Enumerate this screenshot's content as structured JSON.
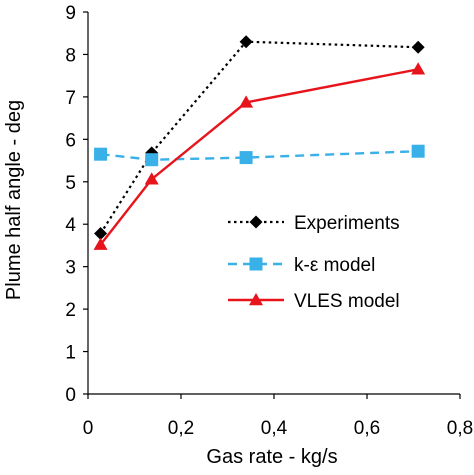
{
  "chart_data": {
    "type": "line",
    "xlabel": "Gas rate - kg/s",
    "ylabel": "Plume half angle - deg",
    "xlim": [
      0,
      0.8
    ],
    "ylim": [
      0,
      9
    ],
    "x_ticks": [
      "0",
      "0,2",
      "0,4",
      "0,6",
      "0,8"
    ],
    "y_ticks": [
      "0",
      "1",
      "2",
      "3",
      "4",
      "5",
      "6",
      "7",
      "8",
      "9"
    ],
    "grid": false,
    "legend_position": "center-right",
    "series": [
      {
        "name": "Experiments",
        "color": "#000000",
        "line_style": "dotted",
        "marker": "diamond",
        "x": [
          0.027,
          0.137,
          0.34,
          0.71
        ],
        "y": [
          3.78,
          5.68,
          8.3,
          8.17
        ]
      },
      {
        "name": "k-ε model",
        "color": "#3ab0e8",
        "line_style": "dashed",
        "marker": "square",
        "x": [
          0.027,
          0.137,
          0.34,
          0.71
        ],
        "y": [
          5.65,
          5.52,
          5.57,
          5.72
        ]
      },
      {
        "name": "VLES model",
        "color": "#e8141c",
        "line_style": "solid",
        "marker": "triangle",
        "x": [
          0.027,
          0.137,
          0.34,
          0.71
        ],
        "y": [
          3.52,
          5.06,
          6.87,
          7.65
        ]
      }
    ]
  }
}
